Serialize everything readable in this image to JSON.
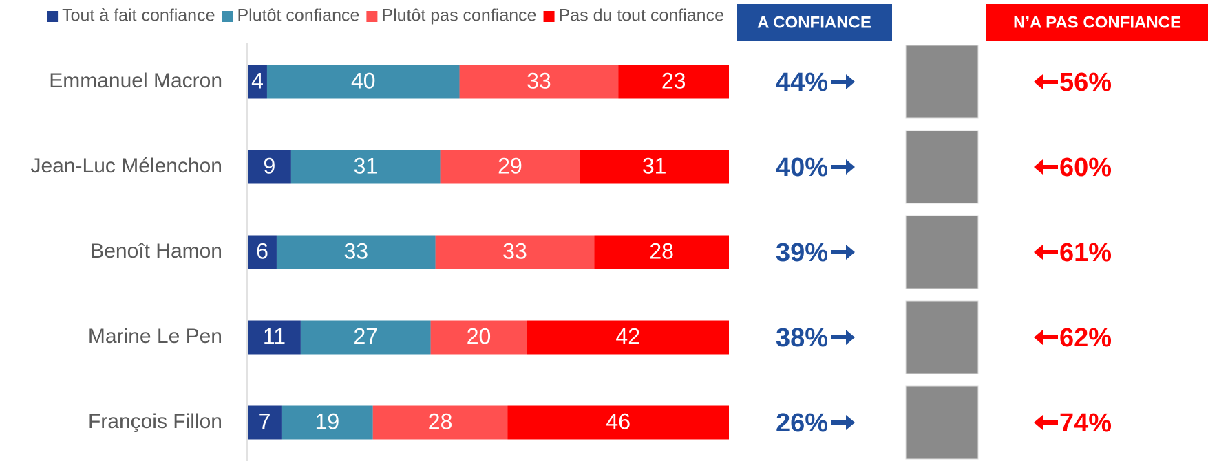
{
  "chart_data": {
    "type": "bar",
    "orientation": "horizontal",
    "stacked": true,
    "categories": [
      "Emmanuel Macron",
      "Jean-Luc Mélenchon",
      "Benoît Hamon",
      "Marine Le Pen",
      "François Fillon"
    ],
    "series": [
      {
        "name": "Tout à fait confiance",
        "color": "#203f8f",
        "values": [
          4,
          9,
          6,
          11,
          7
        ]
      },
      {
        "name": "Plutôt confiance",
        "color": "#3e8fae",
        "values": [
          40,
          31,
          33,
          27,
          19
        ]
      },
      {
        "name": "Plutôt pas confiance",
        "color": "#ff5050",
        "values": [
          33,
          29,
          33,
          20,
          28
        ]
      },
      {
        "name": "Pas du tout confiance",
        "color": "#ff0000",
        "values": [
          23,
          31,
          28,
          42,
          46
        ]
      }
    ],
    "xlim": [
      0,
      100
    ],
    "legend": "top",
    "confidence": {
      "header": "A CONFIANCE",
      "color": "#1f4e9c",
      "values": [
        44,
        40,
        39,
        38,
        26
      ],
      "value_labels": [
        "44%",
        "40%",
        "39%",
        "38%",
        "26%"
      ]
    },
    "no_confidence": {
      "header": "N’A PAS CONFIANCE",
      "color": "#ff0000",
      "values": [
        56,
        60,
        61,
        62,
        74
      ],
      "value_labels": [
        "56%",
        "60%",
        "61%",
        "62%",
        "74%"
      ]
    }
  }
}
